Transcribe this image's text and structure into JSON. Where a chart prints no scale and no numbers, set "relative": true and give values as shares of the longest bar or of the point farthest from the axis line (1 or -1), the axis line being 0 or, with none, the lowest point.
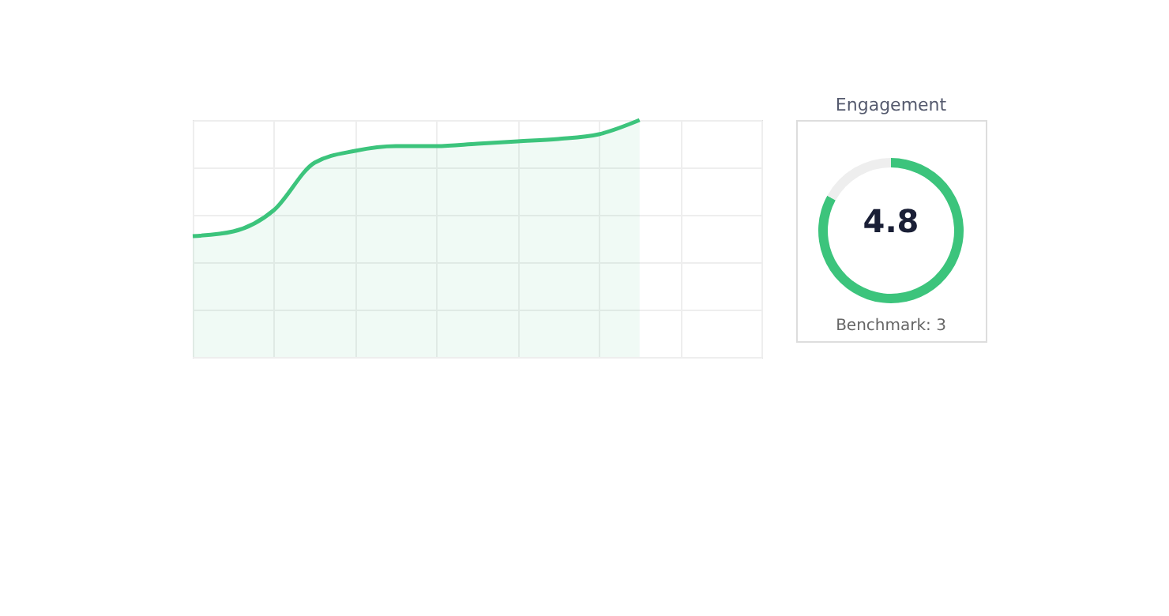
{
  "chart_data": [
    {
      "type": "area",
      "relative": true,
      "categories": [
        null,
        null,
        null,
        null,
        null,
        null,
        null,
        null,
        null,
        null,
        null,
        null,
        null,
        null,
        null
      ],
      "series": [
        {
          "color": "#3cc47c",
          "values": [
            0.51,
            0.53,
            0.62,
            0.82,
            0.87,
            0.89,
            0.89,
            0.9,
            0.91,
            0.92,
            0.94,
            1,
            null,
            null,
            null
          ]
        }
      ],
      "grid": true
    },
    {
      "type": "donut",
      "title": "Engagement",
      "categories": [
        null,
        null
      ],
      "values": [
        83,
        17
      ],
      "colors": [
        "#3cc47c",
        "#eeeeee"
      ],
      "annotations": [
        "4.8",
        "Benchmark: 3"
      ]
    }
  ]
}
